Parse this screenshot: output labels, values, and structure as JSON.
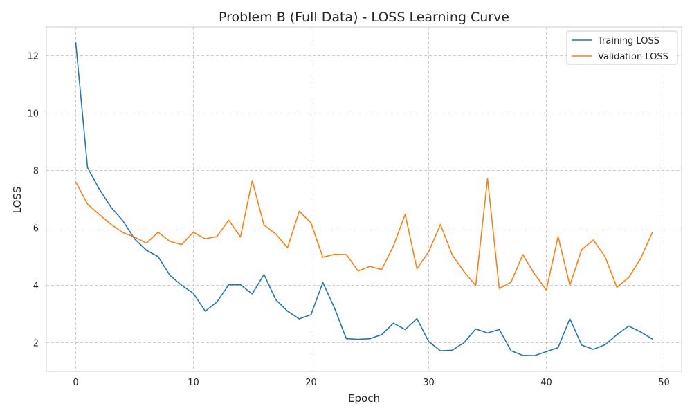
{
  "chart_data": {
    "type": "line",
    "title": "Problem B (Full Data) - LOSS Learning Curve",
    "xlabel": "Epoch",
    "ylabel": "LOSS",
    "xlim": [
      -2.5,
      51.5
    ],
    "ylim": [
      1.0,
      13.0
    ],
    "xticks": [
      0,
      10,
      20,
      30,
      40,
      50
    ],
    "yticks": [
      2,
      4,
      6,
      8,
      10,
      12
    ],
    "grid": true,
    "legend_position": "top-right",
    "x": [
      0,
      1,
      2,
      3,
      4,
      5,
      6,
      7,
      8,
      9,
      10,
      11,
      12,
      13,
      14,
      15,
      16,
      17,
      18,
      19,
      20,
      21,
      22,
      23,
      24,
      25,
      26,
      27,
      28,
      29,
      30,
      31,
      32,
      33,
      34,
      35,
      36,
      37,
      38,
      39,
      40,
      41,
      42,
      43,
      44,
      45,
      46,
      47,
      48,
      49
    ],
    "series": [
      {
        "name": "Training LOSS",
        "color": "#1f77b4",
        "values": [
          12.45,
          8.1,
          7.35,
          6.72,
          6.25,
          5.62,
          5.22,
          5.0,
          4.35,
          4.0,
          3.72,
          3.1,
          3.42,
          4.02,
          4.02,
          3.7,
          4.38,
          3.5,
          3.1,
          2.83,
          2.98,
          4.1,
          3.2,
          2.14,
          2.12,
          2.14,
          2.28,
          2.68,
          2.46,
          2.84,
          2.04,
          1.72,
          1.74,
          2.0,
          2.48,
          2.34,
          2.46,
          1.72,
          1.56,
          1.55,
          1.69,
          1.83,
          2.84,
          1.92,
          1.77,
          1.93,
          2.28,
          2.58,
          2.38,
          2.13
        ]
      },
      {
        "name": "Validation LOSS",
        "color": "#ff7f0e",
        "values": [
          7.6,
          6.83,
          6.47,
          6.12,
          5.84,
          5.68,
          5.47,
          5.85,
          5.53,
          5.42,
          5.85,
          5.62,
          5.7,
          6.27,
          5.69,
          7.65,
          6.1,
          5.79,
          5.31,
          6.58,
          6.17,
          4.98,
          5.08,
          5.07,
          4.5,
          4.66,
          4.55,
          5.37,
          6.47,
          4.58,
          5.17,
          6.12,
          5.06,
          4.48,
          3.99,
          7.72,
          3.89,
          4.11,
          5.07,
          4.39,
          3.84,
          5.7,
          4.0,
          5.24,
          5.58,
          4.99,
          3.93,
          4.27,
          4.92,
          5.83
        ]
      }
    ]
  }
}
